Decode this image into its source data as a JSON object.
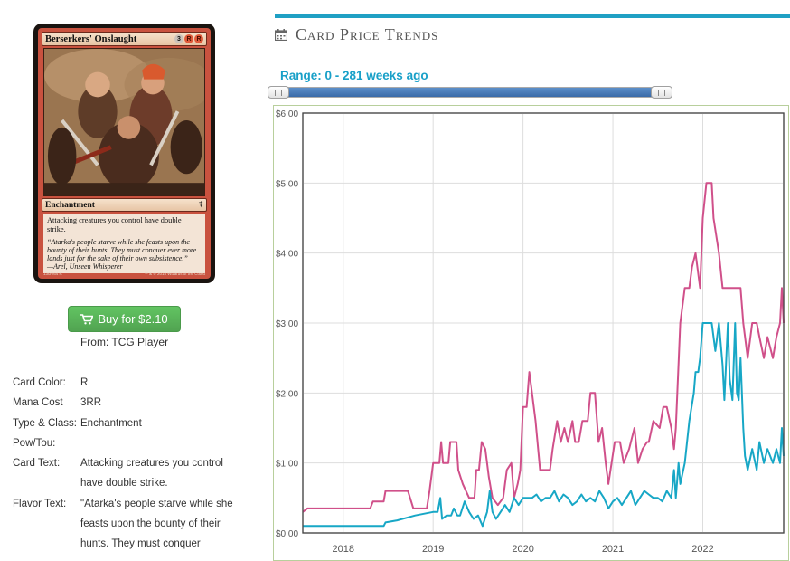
{
  "card": {
    "name": "Berserkers' Onslaught",
    "mana_cost_symbols": [
      "3",
      "R",
      "R"
    ],
    "type_line": "Enchantment",
    "rules_text": "Attacking creatures you control have double strike.",
    "flavor_text": "“Atarka's people starve while she feasts upon the bounty of their hunts. They must conquer ever more lands just for the sake of their own subsistence.”",
    "flavor_attribution": "—Arel, Unseen Whisperer",
    "collector_info": "130/264 R",
    "copyright": "™ & © 2015 Wizards of the Coast"
  },
  "buy": {
    "label": "Buy for $2.10",
    "from": "From: TCG Player",
    "icon": "shopping-cart-icon",
    "color": "#5cb85c"
  },
  "details": [
    {
      "label": "Card Color:",
      "value": "R"
    },
    {
      "label": "Mana Cost",
      "value": "3RR"
    },
    {
      "label": "Type & Class:",
      "value": "Enchantment"
    },
    {
      "label": "Pow/Tou:",
      "value": ""
    },
    {
      "label": "Card Text:",
      "value": "Attacking creatures you control have double strike."
    },
    {
      "label": "Flavor Text:",
      "value": "\"Atarka's people starve while she feasts upon the bounty of their hunts. They must conquer"
    }
  ],
  "panel": {
    "title": "Card Price Trends",
    "icon": "calendar-icon",
    "accent": "#1fa0c4",
    "range_label": "Range: 0 - 281 weeks ago"
  },
  "slider": {
    "min": 0,
    "max": 281,
    "low": 0,
    "high": 281
  },
  "chart_data": {
    "type": "line",
    "title": "",
    "xlabel": "",
    "ylabel": "",
    "x_ticks": [
      "2018",
      "2019",
      "2020",
      "2021",
      "2022"
    ],
    "y_ticks": [
      "$0.00",
      "$1.00",
      "$2.00",
      "$3.00",
      "$4.00",
      "$5.00",
      "$6.00"
    ],
    "xlim": [
      2017.55,
      2022.9
    ],
    "ylim": [
      0,
      6
    ],
    "grid": true,
    "series": [
      {
        "color": "#d0508a",
        "points": [
          [
            2017.55,
            0.3
          ],
          [
            2017.6,
            0.35
          ],
          [
            2018.0,
            0.35
          ],
          [
            2018.3,
            0.35
          ],
          [
            2018.33,
            0.45
          ],
          [
            2018.45,
            0.45
          ],
          [
            2018.47,
            0.6
          ],
          [
            2018.72,
            0.6
          ],
          [
            2018.78,
            0.35
          ],
          [
            2018.93,
            0.35
          ],
          [
            2018.96,
            0.6
          ],
          [
            2019.0,
            1.0
          ],
          [
            2019.07,
            1.0
          ],
          [
            2019.09,
            1.3
          ],
          [
            2019.11,
            1.0
          ],
          [
            2019.17,
            1.0
          ],
          [
            2019.19,
            1.3
          ],
          [
            2019.26,
            1.3
          ],
          [
            2019.28,
            0.9
          ],
          [
            2019.33,
            0.7
          ],
          [
            2019.4,
            0.5
          ],
          [
            2019.46,
            0.5
          ],
          [
            2019.48,
            0.9
          ],
          [
            2019.51,
            0.9
          ],
          [
            2019.54,
            1.3
          ],
          [
            2019.58,
            1.2
          ],
          [
            2019.62,
            0.8
          ],
          [
            2019.66,
            0.5
          ],
          [
            2019.72,
            0.4
          ],
          [
            2019.78,
            0.5
          ],
          [
            2019.82,
            0.9
          ],
          [
            2019.87,
            1.0
          ],
          [
            2019.9,
            0.5
          ],
          [
            2019.94,
            0.7
          ],
          [
            2019.97,
            0.9
          ],
          [
            2020.0,
            1.8
          ],
          [
            2020.04,
            1.8
          ],
          [
            2020.07,
            2.3
          ],
          [
            2020.1,
            2.0
          ],
          [
            2020.14,
            1.6
          ],
          [
            2020.19,
            0.9
          ],
          [
            2020.25,
            0.9
          ],
          [
            2020.3,
            0.9
          ],
          [
            2020.33,
            1.2
          ],
          [
            2020.38,
            1.6
          ],
          [
            2020.42,
            1.3
          ],
          [
            2020.46,
            1.5
          ],
          [
            2020.5,
            1.3
          ],
          [
            2020.55,
            1.6
          ],
          [
            2020.58,
            1.3
          ],
          [
            2020.62,
            1.3
          ],
          [
            2020.66,
            1.6
          ],
          [
            2020.72,
            1.6
          ],
          [
            2020.75,
            2.0
          ],
          [
            2020.8,
            2.0
          ],
          [
            2020.84,
            1.3
          ],
          [
            2020.88,
            1.5
          ],
          [
            2020.92,
            1.0
          ],
          [
            2020.95,
            0.7
          ],
          [
            2021.02,
            1.3
          ],
          [
            2021.08,
            1.3
          ],
          [
            2021.12,
            1.0
          ],
          [
            2021.18,
            1.2
          ],
          [
            2021.24,
            1.5
          ],
          [
            2021.28,
            1.0
          ],
          [
            2021.33,
            1.2
          ],
          [
            2021.38,
            1.3
          ],
          [
            2021.4,
            1.3
          ],
          [
            2021.45,
            1.6
          ],
          [
            2021.52,
            1.5
          ],
          [
            2021.56,
            1.8
          ],
          [
            2021.6,
            1.8
          ],
          [
            2021.65,
            1.5
          ],
          [
            2021.68,
            1.2
          ],
          [
            2021.7,
            1.5
          ],
          [
            2021.75,
            3.0
          ],
          [
            2021.8,
            3.5
          ],
          [
            2021.85,
            3.5
          ],
          [
            2021.88,
            3.8
          ],
          [
            2021.92,
            4.0
          ],
          [
            2021.97,
            3.5
          ],
          [
            2022.0,
            4.5
          ],
          [
            2022.04,
            5.0
          ],
          [
            2022.1,
            5.0
          ],
          [
            2022.12,
            4.5
          ],
          [
            2022.18,
            4.0
          ],
          [
            2022.22,
            3.5
          ],
          [
            2022.3,
            3.5
          ],
          [
            2022.35,
            3.5
          ],
          [
            2022.42,
            3.5
          ],
          [
            2022.45,
            3.0
          ],
          [
            2022.5,
            2.5
          ],
          [
            2022.55,
            3.0
          ],
          [
            2022.6,
            3.0
          ],
          [
            2022.63,
            2.8
          ],
          [
            2022.68,
            2.5
          ],
          [
            2022.72,
            2.8
          ],
          [
            2022.78,
            2.5
          ],
          [
            2022.82,
            2.8
          ],
          [
            2022.86,
            3.0
          ],
          [
            2022.88,
            3.5
          ],
          [
            2022.9,
            3.0
          ]
        ]
      },
      {
        "color": "#17a7c6",
        "points": [
          [
            2017.55,
            0.1
          ],
          [
            2017.6,
            0.1
          ],
          [
            2018.0,
            0.1
          ],
          [
            2018.45,
            0.1
          ],
          [
            2018.47,
            0.15
          ],
          [
            2018.6,
            0.18
          ],
          [
            2018.8,
            0.25
          ],
          [
            2019.0,
            0.3
          ],
          [
            2019.05,
            0.3
          ],
          [
            2019.08,
            0.5
          ],
          [
            2019.1,
            0.2
          ],
          [
            2019.15,
            0.25
          ],
          [
            2019.2,
            0.25
          ],
          [
            2019.23,
            0.35
          ],
          [
            2019.27,
            0.25
          ],
          [
            2019.3,
            0.25
          ],
          [
            2019.35,
            0.45
          ],
          [
            2019.4,
            0.3
          ],
          [
            2019.45,
            0.2
          ],
          [
            2019.5,
            0.25
          ],
          [
            2019.55,
            0.1
          ],
          [
            2019.6,
            0.3
          ],
          [
            2019.63,
            0.6
          ],
          [
            2019.66,
            0.3
          ],
          [
            2019.7,
            0.2
          ],
          [
            2019.75,
            0.3
          ],
          [
            2019.8,
            0.4
          ],
          [
            2019.85,
            0.3
          ],
          [
            2019.9,
            0.5
          ],
          [
            2019.95,
            0.4
          ],
          [
            2020.0,
            0.5
          ],
          [
            2020.05,
            0.5
          ],
          [
            2020.1,
            0.5
          ],
          [
            2020.15,
            0.55
          ],
          [
            2020.2,
            0.45
          ],
          [
            2020.25,
            0.5
          ],
          [
            2020.3,
            0.5
          ],
          [
            2020.35,
            0.6
          ],
          [
            2020.4,
            0.45
          ],
          [
            2020.45,
            0.55
          ],
          [
            2020.5,
            0.5
          ],
          [
            2020.55,
            0.4
          ],
          [
            2020.6,
            0.45
          ],
          [
            2020.65,
            0.55
          ],
          [
            2020.7,
            0.45
          ],
          [
            2020.75,
            0.5
          ],
          [
            2020.8,
            0.45
          ],
          [
            2020.85,
            0.6
          ],
          [
            2020.9,
            0.5
          ],
          [
            2020.95,
            0.35
          ],
          [
            2021.0,
            0.45
          ],
          [
            2021.05,
            0.5
          ],
          [
            2021.1,
            0.4
          ],
          [
            2021.15,
            0.5
          ],
          [
            2021.2,
            0.6
          ],
          [
            2021.25,
            0.4
          ],
          [
            2021.3,
            0.5
          ],
          [
            2021.35,
            0.6
          ],
          [
            2021.4,
            0.55
          ],
          [
            2021.45,
            0.5
          ],
          [
            2021.5,
            0.5
          ],
          [
            2021.55,
            0.45
          ],
          [
            2021.6,
            0.6
          ],
          [
            2021.65,
            0.5
          ],
          [
            2021.68,
            0.9
          ],
          [
            2021.7,
            0.5
          ],
          [
            2021.73,
            1.0
          ],
          [
            2021.75,
            0.7
          ],
          [
            2021.8,
            1.0
          ],
          [
            2021.85,
            1.6
          ],
          [
            2021.9,
            2.0
          ],
          [
            2021.92,
            2.3
          ],
          [
            2021.95,
            2.3
          ],
          [
            2021.97,
            2.5
          ],
          [
            2022.0,
            3.0
          ],
          [
            2022.05,
            3.0
          ],
          [
            2022.1,
            3.0
          ],
          [
            2022.14,
            2.6
          ],
          [
            2022.18,
            3.0
          ],
          [
            2022.22,
            2.4
          ],
          [
            2022.24,
            1.9
          ],
          [
            2022.28,
            3.0
          ],
          [
            2022.3,
            2.2
          ],
          [
            2022.33,
            1.9
          ],
          [
            2022.36,
            3.0
          ],
          [
            2022.38,
            2.0
          ],
          [
            2022.4,
            1.9
          ],
          [
            2022.42,
            2.5
          ],
          [
            2022.45,
            1.5
          ],
          [
            2022.47,
            1.1
          ],
          [
            2022.5,
            0.9
          ],
          [
            2022.55,
            1.2
          ],
          [
            2022.6,
            0.9
          ],
          [
            2022.63,
            1.3
          ],
          [
            2022.68,
            1.0
          ],
          [
            2022.72,
            1.2
          ],
          [
            2022.78,
            1.0
          ],
          [
            2022.82,
            1.2
          ],
          [
            2022.86,
            1.0
          ],
          [
            2022.88,
            1.5
          ],
          [
            2022.9,
            1.1
          ]
        ]
      }
    ]
  }
}
